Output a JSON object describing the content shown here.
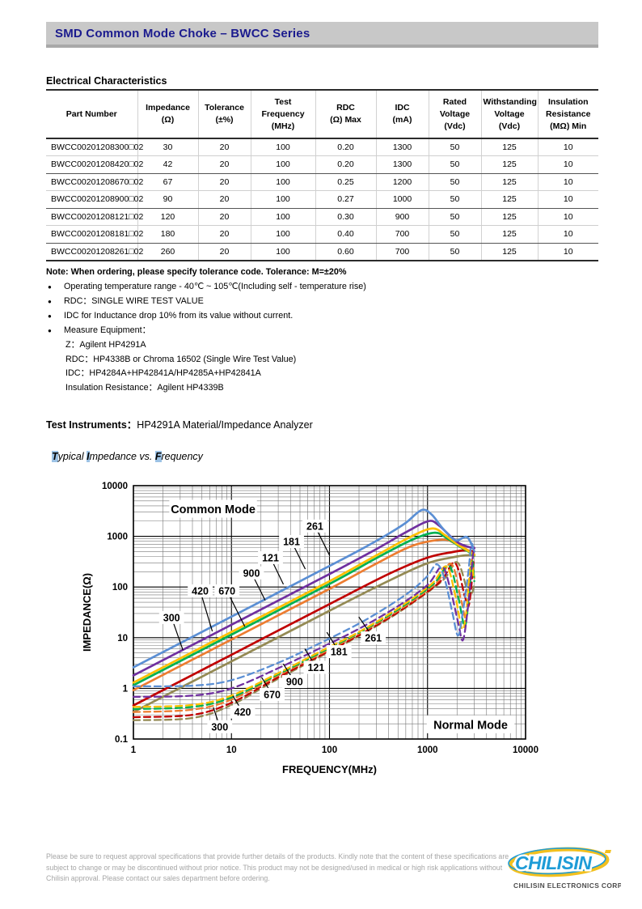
{
  "page": {
    "title_bar": "SMD Common Mode Choke – BWCC Series"
  },
  "electrical": {
    "heading": "Electrical Characteristics",
    "columns": [
      [
        "Part Number"
      ],
      [
        "Impedance",
        "(Ω)"
      ],
      [
        "Tolerance",
        "(±%)"
      ],
      [
        "Test",
        "Frequency",
        "(MHz)"
      ],
      [
        "RDC",
        "(Ω) Max"
      ],
      [
        "IDC",
        "(mA)"
      ],
      [
        "Rated",
        "Voltage",
        "(Vdc)"
      ],
      [
        "Withstanding",
        "Voltage",
        "(Vdc)"
      ],
      [
        "Insulation",
        "Resistance",
        "(MΩ) Min"
      ]
    ],
    "rows": [
      [
        "BWCC00201208300□02",
        "30",
        "20",
        "100",
        "0.20",
        "1300",
        "50",
        "125",
        "10"
      ],
      [
        "BWCC00201208420□02",
        "42",
        "20",
        "100",
        "0.20",
        "1300",
        "50",
        "125",
        "10"
      ],
      [
        "BWCC00201208670□02",
        "67",
        "20",
        "100",
        "0.25",
        "1200",
        "50",
        "125",
        "10"
      ],
      [
        "BWCC00201208900□02",
        "90",
        "20",
        "100",
        "0.27",
        "1000",
        "50",
        "125",
        "10"
      ],
      [
        "BWCC00201208121□02",
        "120",
        "20",
        "100",
        "0.30",
        "900",
        "50",
        "125",
        "10"
      ],
      [
        "BWCC00201208181□02",
        "180",
        "20",
        "100",
        "0.40",
        "700",
        "50",
        "125",
        "10"
      ],
      [
        "BWCC00201208261□02",
        "260",
        "20",
        "100",
        "0.60",
        "700",
        "50",
        "125",
        "10"
      ]
    ]
  },
  "notes": {
    "tolerance_note": "Note: When ordering, please specify tolerance code. Tolerance: M=±20%",
    "bullets": [
      "Operating temperature range - 40℃ ~ 105℃(Including self - temperature rise)",
      "RDC：SINGLE WIRE TEST VALUE",
      "IDC for Inductance drop 10% from its value without current.",
      "Measure Equipment："
    ],
    "equipment_lines": [
      "Z：Agilent HP4291A",
      "RDC：HP4338B or Chroma 16502 (Single Wire Test Value)",
      "IDC：HP4284A+HP42841A/HP4285A+HP42841A",
      "Insulation Resistance：Agilent HP4339B"
    ]
  },
  "test_instruments": {
    "label": "Test Instruments：",
    "value": "HP4291A Material/Impedance Analyzer"
  },
  "chart_caption": {
    "segments": [
      {
        "t": "T",
        "hl": true
      },
      {
        "t": "ypical ",
        "hl": false
      },
      {
        "t": "I",
        "hl": true
      },
      {
        "t": "mpedance vs. ",
        "hl": false
      },
      {
        "t": "F",
        "hl": true
      },
      {
        "t": "requency",
        "hl": false
      }
    ],
    "highlight_color": "#9CC2E5"
  },
  "chart_data": {
    "type": "line",
    "title": "Typical Impedance vs. Frequency",
    "xlabel": "FREQUENCY(MHz)",
    "ylabel": "IMPEDANCE(Ω)",
    "xscale": "log",
    "yscale": "log",
    "xlim": [
      1,
      10000
    ],
    "ylim": [
      0.1,
      10000
    ],
    "x_ticks": [
      "1",
      "10",
      "100",
      "1000",
      "10000"
    ],
    "y_ticks": [
      "10000",
      "1000",
      "100",
      "10",
      "1",
      "0.1"
    ],
    "grid": true,
    "mode_labels": [
      {
        "text": "Common Mode",
        "f": 6.5,
        "z": 3500
      },
      {
        "text": "Normal Mode",
        "f": 2750,
        "z": 0.195
      }
    ],
    "series": [
      {
        "name": "Common Mode 300 (30Ω)",
        "color": "#948A54",
        "dash": false,
        "points": [
          [
            1,
            0.34
          ],
          [
            10,
            3.4
          ],
          [
            100,
            34
          ],
          [
            400,
            132
          ],
          [
            1000,
            295
          ],
          [
            2000,
            400
          ],
          [
            2600,
            425
          ],
          [
            3000,
            415
          ]
        ]
      },
      {
        "name": "Common Mode 420 (42Ω)",
        "color": "#C00000",
        "dash": false,
        "points": [
          [
            1,
            0.46
          ],
          [
            10,
            4.6
          ],
          [
            100,
            46
          ],
          [
            400,
            180
          ],
          [
            1000,
            380
          ],
          [
            1800,
            490
          ],
          [
            2400,
            530
          ],
          [
            3000,
            500
          ]
        ]
      },
      {
        "name": "Common Mode 670 (67Ω)",
        "color": "#ED7D31",
        "dash": false,
        "points": [
          [
            1,
            0.92
          ],
          [
            10,
            9.2
          ],
          [
            100,
            92
          ],
          [
            300,
            290
          ],
          [
            700,
            650
          ],
          [
            1420,
            860
          ],
          [
            1900,
            730
          ],
          [
            2400,
            580
          ],
          [
            3000,
            440
          ]
        ]
      },
      {
        "name": "Common Mode 900 (90Ω)",
        "color": "#00B050",
        "dash": false,
        "points": [
          [
            1,
            1.15
          ],
          [
            10,
            11.5
          ],
          [
            100,
            115
          ],
          [
            300,
            370
          ],
          [
            700,
            860
          ],
          [
            1190,
            1180
          ],
          [
            1600,
            900
          ],
          [
            2100,
            640
          ],
          [
            2600,
            500
          ],
          [
            3000,
            420
          ]
        ]
      },
      {
        "name": "Common Mode 121 (120Ω)",
        "color": "#FFC000",
        "dash": false,
        "points": [
          [
            1,
            1.3
          ],
          [
            10,
            13
          ],
          [
            100,
            130
          ],
          [
            300,
            420
          ],
          [
            700,
            1020
          ],
          [
            1130,
            1430
          ],
          [
            1500,
            1060
          ],
          [
            2000,
            700
          ],
          [
            2500,
            540
          ],
          [
            3000,
            430
          ]
        ]
      },
      {
        "name": "Common Mode 181 (180Ω)",
        "color": "#7030A0",
        "dash": false,
        "points": [
          [
            1,
            1.8
          ],
          [
            10,
            18
          ],
          [
            100,
            180
          ],
          [
            300,
            560
          ],
          [
            600,
            1200
          ],
          [
            1020,
            2000
          ],
          [
            1300,
            1650
          ],
          [
            1700,
            1020
          ],
          [
            2100,
            730
          ],
          [
            2600,
            620
          ],
          [
            3000,
            580
          ]
        ]
      },
      {
        "name": "Common Mode 261 (260Ω)",
        "color": "#5B8FD4",
        "dash": false,
        "points": [
          [
            1,
            2.6
          ],
          [
            3,
            7.8
          ],
          [
            10,
            26
          ],
          [
            30,
            78
          ],
          [
            100,
            260
          ],
          [
            200,
            525
          ],
          [
            400,
            1120
          ],
          [
            600,
            1850
          ],
          [
            870,
            3300
          ],
          [
            1100,
            2700
          ],
          [
            1400,
            1500
          ],
          [
            1750,
            950
          ],
          [
            2000,
            830
          ],
          [
            2450,
            980
          ],
          [
            2700,
            820
          ],
          [
            3000,
            500
          ]
        ]
      },
      {
        "name": "Normal Mode 300",
        "color": "#948A54",
        "dash": true,
        "points": [
          [
            1,
            0.235
          ],
          [
            4,
            0.26
          ],
          [
            10,
            0.47
          ],
          [
            30,
            1.55
          ],
          [
            80,
            4.2
          ],
          [
            200,
            10.8
          ],
          [
            500,
            31
          ],
          [
            1400,
            130
          ],
          [
            2000,
            310
          ],
          [
            2550,
            85
          ],
          [
            2800,
            70
          ],
          [
            3000,
            115
          ]
        ]
      },
      {
        "name": "Normal Mode 420",
        "color": "#C00000",
        "dash": true,
        "points": [
          [
            1,
            0.27
          ],
          [
            4,
            0.3
          ],
          [
            10,
            0.52
          ],
          [
            30,
            1.65
          ],
          [
            80,
            4.4
          ],
          [
            200,
            11.2
          ],
          [
            500,
            32
          ],
          [
            1300,
            120
          ],
          [
            1900,
            300
          ],
          [
            2400,
            65
          ],
          [
            2650,
            45
          ],
          [
            2950,
            310
          ]
        ]
      },
      {
        "name": "Normal Mode 670",
        "color": "#ED7D31",
        "dash": true,
        "points": [
          [
            1,
            0.34
          ],
          [
            4,
            0.38
          ],
          [
            10,
            0.6
          ],
          [
            30,
            1.8
          ],
          [
            80,
            4.7
          ],
          [
            200,
            12
          ],
          [
            500,
            34
          ],
          [
            1200,
            115
          ],
          [
            1750,
            285
          ],
          [
            2200,
            55
          ],
          [
            2500,
            26
          ],
          [
            2800,
            330
          ],
          [
            3000,
            150
          ]
        ]
      },
      {
        "name": "Normal Mode 900",
        "color": "#00B050",
        "dash": true,
        "points": [
          [
            1,
            0.39
          ],
          [
            4,
            0.43
          ],
          [
            10,
            0.66
          ],
          [
            30,
            1.9
          ],
          [
            80,
            5.0
          ],
          [
            200,
            12.5
          ],
          [
            500,
            36
          ],
          [
            1150,
            115
          ],
          [
            1650,
            265
          ],
          [
            2050,
            65
          ],
          [
            2400,
            17
          ],
          [
            2650,
            70
          ],
          [
            2850,
            320
          ],
          [
            3000,
            130
          ]
        ]
      },
      {
        "name": "Normal Mode 121",
        "color": "#FFC000",
        "dash": true,
        "points": [
          [
            1,
            0.43
          ],
          [
            4,
            0.47
          ],
          [
            10,
            0.72
          ],
          [
            30,
            2.0
          ],
          [
            80,
            5.3
          ],
          [
            200,
            13
          ],
          [
            500,
            38
          ],
          [
            1100,
            115
          ],
          [
            1550,
            255
          ],
          [
            1900,
            75
          ],
          [
            2250,
            15
          ],
          [
            2500,
            35
          ],
          [
            2750,
            300
          ],
          [
            2950,
            160
          ]
        ]
      },
      {
        "name": "Normal Mode 181",
        "color": "#7030A0",
        "dash": true,
        "points": [
          [
            1,
            0.68
          ],
          [
            4,
            0.72
          ],
          [
            10,
            1.0
          ],
          [
            30,
            2.5
          ],
          [
            80,
            6.2
          ],
          [
            200,
            15
          ],
          [
            500,
            42
          ],
          [
            1000,
            110
          ],
          [
            1400,
            250
          ],
          [
            1700,
            95
          ],
          [
            2050,
            20
          ],
          [
            2300,
            9
          ],
          [
            2600,
            45
          ],
          [
            2900,
            400
          ],
          [
            3000,
            600
          ]
        ]
      },
      {
        "name": "Normal Mode 261",
        "color": "#5B8FD4",
        "dash": true,
        "points": [
          [
            1,
            1.1
          ],
          [
            4,
            1.13
          ],
          [
            10,
            1.45
          ],
          [
            30,
            3.2
          ],
          [
            80,
            7.8
          ],
          [
            200,
            19
          ],
          [
            400,
            42
          ],
          [
            700,
            88
          ],
          [
            1000,
            165
          ],
          [
            1250,
            280
          ],
          [
            1500,
            140
          ],
          [
            1800,
            30
          ],
          [
            2050,
            11
          ],
          [
            2300,
            34
          ],
          [
            2600,
            190
          ],
          [
            2800,
            700
          ],
          [
            2950,
            500
          ]
        ]
      }
    ],
    "curve_labels": [
      {
        "text": "261",
        "f": 71,
        "z": 1600,
        "leader": [
          18,
          36
        ]
      },
      {
        "text": "181",
        "f": 41,
        "z": 790,
        "leader": [
          17,
          34
        ]
      },
      {
        "text": "121",
        "f": 25,
        "z": 380,
        "leader": [
          16,
          33
        ]
      },
      {
        "text": "900",
        "f": 16,
        "z": 190,
        "leader": [
          17,
          34
        ]
      },
      {
        "text": "670",
        "f": 9.0,
        "z": 84,
        "leader": [
          22,
          44
        ]
      },
      {
        "text": "420",
        "f": 4.8,
        "z": 84,
        "leader": [
          15,
          50
        ]
      },
      {
        "text": "300",
        "f": 2.45,
        "z": 25,
        "leader": [
          14,
          40
        ]
      },
      {
        "text": "261",
        "f": 280,
        "z": 9.9,
        "leader": [
          -18,
          -26
        ]
      },
      {
        "text": "181",
        "f": 125,
        "z": 5.3,
        "leader": [
          -15,
          -24
        ]
      },
      {
        "text": "121",
        "f": 73,
        "z": 2.6,
        "leader": [
          -14,
          -23
        ]
      },
      {
        "text": "900",
        "f": 44,
        "z": 1.36,
        "leader": [
          -14,
          -22
        ]
      },
      {
        "text": "670",
        "f": 26,
        "z": 0.76,
        "leader": [
          -13,
          -21
        ]
      },
      {
        "text": "420",
        "f": 13,
        "z": 0.34,
        "leader": [
          -12,
          -20
        ]
      },
      {
        "text": "300",
        "f": 7.6,
        "z": 0.175,
        "leader": [
          -8,
          -24
        ]
      }
    ]
  },
  "footer": {
    "disclaimer": "Please be sure to request approval specifications that provide further details of the products. Kindly note that the content of these specifications are subject to change or may be discontinued without prior notice. This product may not be designed/used in medical or high risk applications without Chilisin approval. Please contact our sales department before ordering.",
    "logo_text": "CHILISIN",
    "logo_caption": "CHILISIN ELECTRONICS CORP."
  }
}
